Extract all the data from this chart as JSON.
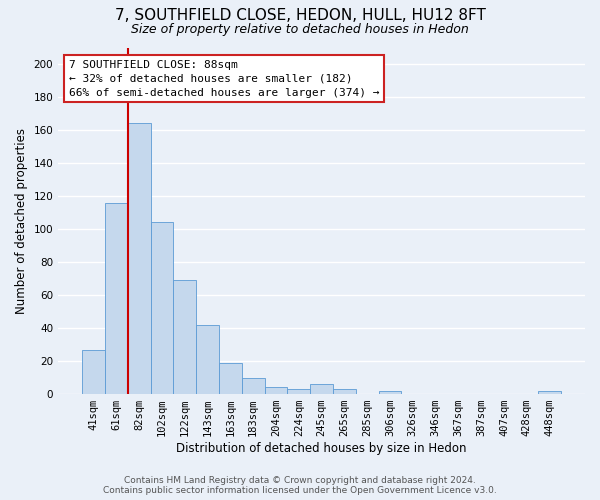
{
  "title": "7, SOUTHFIELD CLOSE, HEDON, HULL, HU12 8FT",
  "subtitle": "Size of property relative to detached houses in Hedon",
  "xlabel": "Distribution of detached houses by size in Hedon",
  "ylabel": "Number of detached properties",
  "bar_labels": [
    "41sqm",
    "61sqm",
    "82sqm",
    "102sqm",
    "122sqm",
    "143sqm",
    "163sqm",
    "183sqm",
    "204sqm",
    "224sqm",
    "245sqm",
    "265sqm",
    "285sqm",
    "306sqm",
    "326sqm",
    "346sqm",
    "367sqm",
    "387sqm",
    "407sqm",
    "428sqm",
    "448sqm"
  ],
  "bar_values": [
    27,
    116,
    164,
    104,
    69,
    42,
    19,
    10,
    4,
    3,
    6,
    3,
    0,
    2,
    0,
    0,
    0,
    0,
    0,
    0,
    2
  ],
  "bar_color": "#c5d8ed",
  "bar_edge_color": "#5b9bd5",
  "vline_color": "#cc0000",
  "ylim": [
    0,
    210
  ],
  "yticks": [
    0,
    20,
    40,
    60,
    80,
    100,
    120,
    140,
    160,
    180,
    200
  ],
  "annotation_title": "7 SOUTHFIELD CLOSE: 88sqm",
  "annotation_line1": "← 32% of detached houses are smaller (182)",
  "annotation_line2": "66% of semi-detached houses are larger (374) →",
  "footer1": "Contains HM Land Registry data © Crown copyright and database right 2024.",
  "footer2": "Contains public sector information licensed under the Open Government Licence v3.0.",
  "bg_color": "#eaf0f8",
  "grid_color": "#ffffff",
  "title_fontsize": 11,
  "subtitle_fontsize": 9,
  "label_fontsize": 8.5,
  "tick_fontsize": 7.5,
  "footer_fontsize": 6.5,
  "ann_fontsize": 8
}
